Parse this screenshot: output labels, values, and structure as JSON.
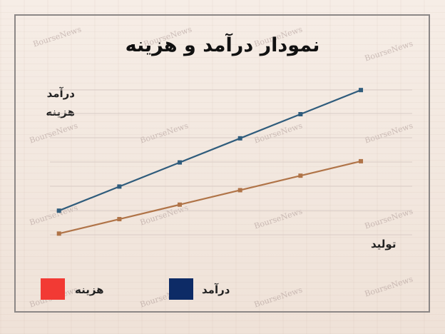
{
  "title": "نمودار درآمد و هزینه",
  "y_label_line1": "درآمد",
  "y_label_line2": "هزینه",
  "x_label": "تولید",
  "watermark_text": "BourseNews",
  "chart_data": {
    "type": "line",
    "x": [
      1,
      2,
      3,
      4,
      5,
      6
    ],
    "xlim": [
      0.85,
      6.85
    ],
    "ylim": [
      0,
      10
    ],
    "grid": true,
    "series": [
      {
        "name": "درآمد",
        "color": "#2f5c7c",
        "values": [
          1.0,
          2.0,
          3.0,
          4.0,
          5.0,
          6.0
        ]
      },
      {
        "name": "هزینه",
        "color": "#b07448",
        "values": [
          0.05,
          0.65,
          1.25,
          1.85,
          2.45,
          3.05
        ]
      }
    ]
  },
  "legend": [
    {
      "label": "هزینه",
      "color": "#f23a34"
    },
    {
      "label": "درآمد",
      "color": "#0d2b66"
    }
  ]
}
